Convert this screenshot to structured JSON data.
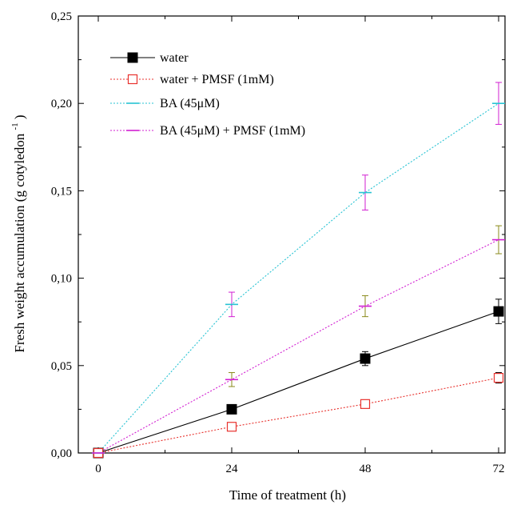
{
  "chart_data": {
    "type": "line",
    "xlabel": "Time of treatment (h)",
    "ylabel": "Fresh weight accumulation (g cotyledon",
    "ylabel_superscript": "-1",
    "ylabel_close": ")",
    "x": [
      0,
      24,
      48,
      72
    ],
    "x_tick_labels": [
      "0",
      "24",
      "48",
      "72"
    ],
    "y_tick_values": [
      0,
      0.05,
      0.1,
      0.15,
      0.2,
      0.25
    ],
    "y_tick_labels": [
      "0,00",
      "0,05",
      "0,10",
      "0,15",
      "0,20",
      "0,25"
    ],
    "xlim": [
      0,
      72
    ],
    "ylim": [
      0,
      0.25
    ],
    "grid": false,
    "legend_position": "top-left",
    "series": [
      {
        "name": "water",
        "color": "#000000",
        "line_style": "solid",
        "marker": "filled-square",
        "values": [
          0.0,
          0.025,
          0.054,
          0.081
        ],
        "errors": [
          0.0,
          0.0,
          0.004,
          0.007
        ],
        "error_color": "#000000"
      },
      {
        "name": "water + PMSF (1mM)",
        "color": "#e8322e",
        "line_style": "dotted",
        "marker": "open-square",
        "values": [
          0.0,
          0.015,
          0.028,
          0.043
        ],
        "errors": [
          0.0,
          0.0,
          0.0,
          0.003
        ],
        "error_color": "#000000"
      },
      {
        "name": "BA (45μM)",
        "color": "#27c3d3",
        "line_style": "dotted",
        "marker": "horizontal-dash",
        "values": [
          0.0,
          0.085,
          0.149,
          0.2
        ],
        "errors": [
          0.0,
          0.007,
          0.01,
          0.012
        ],
        "error_color": "#d21fd2"
      },
      {
        "name": "BA (45μM) + PMSF (1mM)",
        "color": "#d21fd2",
        "line_style": "dotted",
        "marker": "horizontal-dash",
        "values": [
          0.0,
          0.042,
          0.084,
          0.122
        ],
        "errors": [
          0.0,
          0.004,
          0.006,
          0.008
        ],
        "error_color": "#8a8a1a"
      }
    ]
  }
}
